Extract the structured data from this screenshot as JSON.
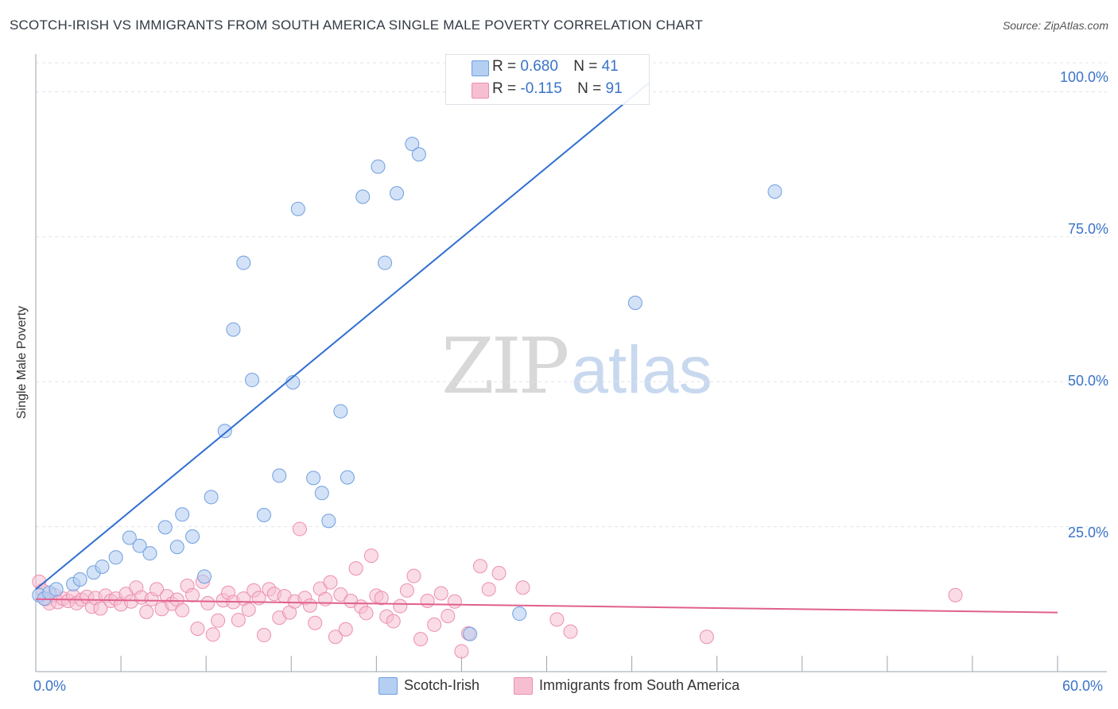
{
  "title": "SCOTCH-IRISH VS IMMIGRANTS FROM SOUTH AMERICA SINGLE MALE POVERTY CORRELATION CHART",
  "source": "Source: ZipAtlas.com",
  "watermark": {
    "zip": "ZIP",
    "atlas": "atlas"
  },
  "legend": {
    "rows": [
      {
        "r_label": "R = ",
        "r_value": "0.680",
        "n_label": "N = ",
        "n_value": "41"
      },
      {
        "r_label": "R = ",
        "r_value": "-0.115",
        "n_label": "N = ",
        "n_value": "91"
      }
    ]
  },
  "colors": {
    "blue_fill": "#b5cff2",
    "blue_stroke": "#6f9fe0",
    "blue_line": "#2f6fd1",
    "pink_fill": "#f6bfd1",
    "pink_stroke": "#ec8fae",
    "pink_line": "#e0608e",
    "axis_text": "#3a73c9",
    "grid": "#dfe3e8"
  },
  "chart_data": {
    "type": "scatter",
    "title": "SCOTCH-IRISH VS IMMIGRANTS FROM SOUTH AMERICA SINGLE MALE POVERTY CORRELATION CHART",
    "xlabel": "",
    "ylabel": "Single Male Poverty",
    "xlim": [
      0,
      60
    ],
    "ylim": [
      0,
      105
    ],
    "x_tick_labels": [
      "0.0%",
      "60.0%"
    ],
    "y_ticks": [
      25,
      50,
      75,
      100
    ],
    "y_tick_labels": [
      "25.0%",
      "50.0%",
      "75.0%",
      "100.0%"
    ],
    "grid": "horizontal dashed",
    "legend_position": "top-center",
    "series": [
      {
        "name": "Scotch-Irish",
        "color": "#6f9fe0",
        "trend": {
          "x0": 0.0,
          "y0": 14.2,
          "x1": 36.0,
          "y1": 101.5
        },
        "points": [
          [
            0.2,
            13.2
          ],
          [
            0.5,
            12.6
          ],
          [
            0.8,
            13.6
          ],
          [
            1.2,
            14.2
          ],
          [
            2.2,
            15.1
          ],
          [
            2.6,
            15.9
          ],
          [
            3.4,
            17.1
          ],
          [
            3.9,
            18.1
          ],
          [
            4.7,
            19.7
          ],
          [
            5.5,
            23.1
          ],
          [
            6.1,
            21.7
          ],
          [
            6.7,
            20.4
          ],
          [
            7.6,
            24.9
          ],
          [
            8.3,
            21.5
          ],
          [
            8.6,
            27.1
          ],
          [
            9.2,
            23.3
          ],
          [
            9.9,
            16.4
          ],
          [
            10.3,
            30.1
          ],
          [
            11.1,
            41.5
          ],
          [
            11.6,
            59.0
          ],
          [
            12.2,
            70.5
          ],
          [
            12.7,
            50.3
          ],
          [
            13.4,
            27.0
          ],
          [
            14.3,
            33.8
          ],
          [
            15.1,
            49.9
          ],
          [
            15.4,
            79.8
          ],
          [
            16.3,
            33.4
          ],
          [
            16.8,
            30.8
          ],
          [
            17.2,
            26.0
          ],
          [
            17.9,
            44.9
          ],
          [
            18.3,
            33.5
          ],
          [
            19.2,
            81.9
          ],
          [
            20.1,
            87.1
          ],
          [
            20.5,
            70.5
          ],
          [
            21.2,
            82.5
          ],
          [
            22.1,
            91.0
          ],
          [
            22.5,
            89.2
          ],
          [
            25.5,
            6.5
          ],
          [
            28.4,
            10.0
          ],
          [
            35.2,
            63.6
          ],
          [
            43.4,
            82.8
          ]
        ]
      },
      {
        "name": "Immigrants from South America",
        "color": "#ec8fae",
        "trend": {
          "x0": 0.0,
          "y0": 12.5,
          "x1": 60.0,
          "y1": 10.2
        },
        "points": [
          [
            0.2,
            15.5
          ],
          [
            0.4,
            14.0
          ],
          [
            0.6,
            12.5
          ],
          [
            0.8,
            11.8
          ],
          [
            1.1,
            13.2
          ],
          [
            1.3,
            12.0
          ],
          [
            1.6,
            12.6
          ],
          [
            1.9,
            12.2
          ],
          [
            2.2,
            13.0
          ],
          [
            2.4,
            11.8
          ],
          [
            2.7,
            12.4
          ],
          [
            3.0,
            12.9
          ],
          [
            3.3,
            11.2
          ],
          [
            3.5,
            12.7
          ],
          [
            3.8,
            10.9
          ],
          [
            4.1,
            13.1
          ],
          [
            4.4,
            12.2
          ],
          [
            4.7,
            12.6
          ],
          [
            5.0,
            11.6
          ],
          [
            5.3,
            13.4
          ],
          [
            5.6,
            12.1
          ],
          [
            5.9,
            14.5
          ],
          [
            6.2,
            12.8
          ],
          [
            6.5,
            10.3
          ],
          [
            6.8,
            12.5
          ],
          [
            7.1,
            14.2
          ],
          [
            7.4,
            10.8
          ],
          [
            7.7,
            13.0
          ],
          [
            8.0,
            11.7
          ],
          [
            8.3,
            12.4
          ],
          [
            8.6,
            10.6
          ],
          [
            8.9,
            14.8
          ],
          [
            9.2,
            13.2
          ],
          [
            9.5,
            7.4
          ],
          [
            9.8,
            15.5
          ],
          [
            10.1,
            11.8
          ],
          [
            10.4,
            6.4
          ],
          [
            10.7,
            8.8
          ],
          [
            11.0,
            12.3
          ],
          [
            11.3,
            13.6
          ],
          [
            11.6,
            12.0
          ],
          [
            11.9,
            8.9
          ],
          [
            12.2,
            12.6
          ],
          [
            12.5,
            10.7
          ],
          [
            12.8,
            14.0
          ],
          [
            13.1,
            12.7
          ],
          [
            13.4,
            6.3
          ],
          [
            13.7,
            14.2
          ],
          [
            14.0,
            13.4
          ],
          [
            14.3,
            9.3
          ],
          [
            14.6,
            13.0
          ],
          [
            14.9,
            10.2
          ],
          [
            15.2,
            12.1
          ],
          [
            15.5,
            24.6
          ],
          [
            15.8,
            12.7
          ],
          [
            16.1,
            11.4
          ],
          [
            16.4,
            8.4
          ],
          [
            16.7,
            14.3
          ],
          [
            17.0,
            12.5
          ],
          [
            17.3,
            15.4
          ],
          [
            17.6,
            6.0
          ],
          [
            17.9,
            13.3
          ],
          [
            18.2,
            7.3
          ],
          [
            18.5,
            12.2
          ],
          [
            18.8,
            17.8
          ],
          [
            19.1,
            11.2
          ],
          [
            19.4,
            10.1
          ],
          [
            19.7,
            20.0
          ],
          [
            20.0,
            13.1
          ],
          [
            20.3,
            12.7
          ],
          [
            20.6,
            9.5
          ],
          [
            21.0,
            8.7
          ],
          [
            21.4,
            11.3
          ],
          [
            21.8,
            14.0
          ],
          [
            22.2,
            16.5
          ],
          [
            22.6,
            5.6
          ],
          [
            23.0,
            12.2
          ],
          [
            23.4,
            8.1
          ],
          [
            23.8,
            13.5
          ],
          [
            24.2,
            9.6
          ],
          [
            24.6,
            12.1
          ],
          [
            25.0,
            3.5
          ],
          [
            25.4,
            6.6
          ],
          [
            26.1,
            18.2
          ],
          [
            26.6,
            14.2
          ],
          [
            27.2,
            17.0
          ],
          [
            28.6,
            14.5
          ],
          [
            30.6,
            9.0
          ],
          [
            31.4,
            6.9
          ],
          [
            39.4,
            6.0
          ],
          [
            54.0,
            13.2
          ]
        ]
      }
    ]
  },
  "bottom_legend": [
    "Scotch-Irish",
    "Immigrants from South America"
  ],
  "x_tick_labels": [
    "0.0%",
    "60.0%"
  ],
  "y_tick_labels": [
    "100.0%",
    "75.0%",
    "50.0%",
    "25.0%"
  ]
}
